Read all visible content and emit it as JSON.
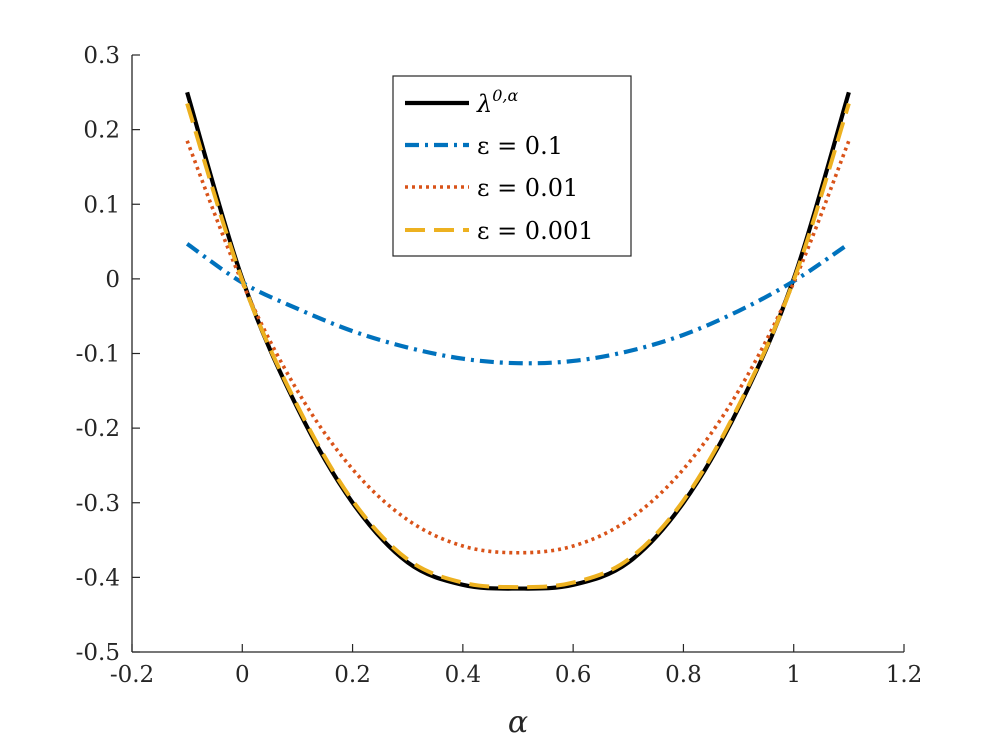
{
  "chart_data": {
    "type": "line",
    "title": "",
    "xlabel": "α",
    "ylabel": "",
    "xlim": [
      -0.2,
      1.2
    ],
    "ylim": [
      -0.5,
      0.3
    ],
    "grid": false,
    "legend_position": "top-center",
    "x_ticks": [
      -0.2,
      0,
      0.2,
      0.4,
      0.6,
      0.8,
      1,
      1.2
    ],
    "x_tick_labels": [
      "-0.2",
      "0",
      "0.2",
      "0.4",
      "0.6",
      "0.8",
      "1",
      "1.2"
    ],
    "y_ticks": [
      -0.5,
      -0.4,
      -0.3,
      -0.2,
      -0.1,
      0,
      0.1,
      0.2,
      0.3
    ],
    "y_tick_labels": [
      "-0.5",
      "-0.4",
      "-0.3",
      "-0.2",
      "-0.1",
      "0",
      "0.1",
      "0.2",
      "0.3"
    ],
    "x": [
      -0.1,
      0.0,
      0.1,
      0.2,
      0.3,
      0.4,
      0.5,
      0.6,
      0.7,
      0.8,
      0.9,
      1.0,
      1.1
    ],
    "series": [
      {
        "name": "λ^{0,α}",
        "legend_main": "λ",
        "legend_sup": "0,α",
        "color": "#000000",
        "style": "solid",
        "values": [
          0.25,
          0.0,
          -0.173,
          -0.3,
          -0.38,
          -0.41,
          -0.415,
          -0.41,
          -0.38,
          -0.3,
          -0.173,
          0.0,
          0.25
        ]
      },
      {
        "name": "ε = 0.1",
        "legend_text": "ε = 0.1",
        "color": "#0072BD",
        "style": "dashdot",
        "values": [
          0.047,
          -0.005,
          -0.04,
          -0.07,
          -0.092,
          -0.107,
          -0.113,
          -0.11,
          -0.097,
          -0.075,
          -0.043,
          -0.003,
          0.047
        ]
      },
      {
        "name": "ε = 0.01",
        "legend_text": "ε = 0.01",
        "color": "#D95319",
        "style": "dotted",
        "values": [
          0.185,
          -0.005,
          -0.15,
          -0.255,
          -0.323,
          -0.358,
          -0.367,
          -0.358,
          -0.323,
          -0.255,
          -0.15,
          -0.005,
          0.185
        ]
      },
      {
        "name": "ε = 0.001",
        "legend_text": "ε = 0.001",
        "color": "#EDB120",
        "style": "dashed",
        "values": [
          0.235,
          -0.002,
          -0.17,
          -0.297,
          -0.376,
          -0.407,
          -0.413,
          -0.407,
          -0.376,
          -0.297,
          -0.17,
          -0.002,
          0.235
        ]
      }
    ]
  }
}
